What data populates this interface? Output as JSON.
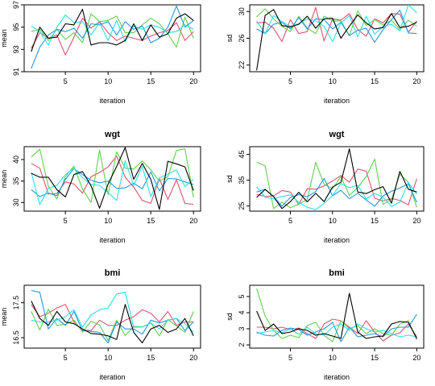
{
  "panels": [
    {
      "title": "",
      "xlabel": "iteration",
      "ylabel": "mean",
      "ylim": [
        91,
        97
      ],
      "yticks": [
        91,
        93,
        95,
        97
      ],
      "series": [
        [
          92.8,
          95.0,
          94.0,
          94.1,
          95.3,
          95.2,
          96.6,
          93.4,
          93.6,
          93.6,
          93.4,
          93.8,
          95.3,
          93.8,
          95.2,
          94.1,
          94.4,
          95.8,
          96.2,
          95.6
        ],
        [
          93.1,
          94.5,
          94.0,
          94.3,
          92.5,
          94.1,
          95.8,
          94.9,
          95.5,
          94.5,
          93.8,
          94.2,
          94.0,
          93.8,
          94.2,
          94.5,
          94.7,
          95.4,
          93.8,
          94.6
        ],
        [
          94.6,
          94.8,
          93.8,
          94.8,
          93.9,
          94.5,
          93.6,
          96.2,
          95.5,
          95.6,
          96.0,
          94.5,
          94.5,
          95.2,
          95.8,
          95.3,
          94.4,
          93.2,
          95.9,
          94.0
        ],
        [
          91.3,
          93.2,
          94.3,
          94.8,
          94.6,
          94.9,
          94.0,
          95.3,
          95.2,
          95.5,
          94.3,
          95.5,
          94.8,
          95.1,
          93.6,
          94.0,
          95.0,
          96.9,
          95.0,
          95.6
        ],
        [
          95.1,
          94.6,
          93.4,
          95.0,
          96.1,
          95.4,
          95.5,
          94.3,
          95.4,
          93.8,
          95.6,
          93.7,
          95.1,
          94.8,
          95.2,
          95.0,
          94.5,
          94.6,
          95.2,
          94.8
        ]
      ]
    },
    {
      "title": "",
      "xlabel": "iteration",
      "ylabel": "sd",
      "ylim": [
        21,
        31
      ],
      "yticks": [
        22,
        26,
        30
      ],
      "series": [
        [
          21.2,
          29.4,
          30.3,
          27.9,
          27.7,
          28.1,
          29.3,
          27.5,
          28.9,
          29.0,
          26.0,
          27.8,
          29.5,
          28.3,
          27.4,
          27.6,
          29.7,
          27.6,
          27.8,
          28.4
        ],
        [
          28.3,
          28.4,
          27.5,
          25.5,
          28.8,
          26.7,
          27.0,
          30.6,
          25.6,
          28.9,
          28.7,
          29.7,
          27.3,
          26.3,
          28.9,
          28.3,
          29.7,
          29.6,
          26.9,
          28.6
        ],
        [
          29.2,
          30.4,
          28.9,
          27.8,
          27.0,
          29.3,
          27.5,
          26.7,
          29.3,
          28.6,
          28.6,
          26.4,
          30.1,
          27.9,
          28.8,
          28.0,
          28.7,
          27.3,
          28.7,
          27.8
        ],
        [
          27.4,
          26.7,
          28.1,
          28.4,
          27.4,
          29.1,
          27.4,
          28.9,
          28.8,
          27.4,
          28.4,
          26.4,
          27.2,
          27.5,
          25.4,
          27.3,
          28.8,
          30.2,
          26.8,
          26.7
        ],
        [
          28.6,
          26.7,
          29.4,
          28.5,
          27.8,
          28.2,
          28.9,
          28.6,
          27.8,
          25.5,
          28.3,
          29.4,
          26.2,
          29.3,
          26.6,
          27.8,
          28.1,
          27.1,
          31.0,
          29.8
        ]
      ]
    },
    {
      "title": "wgt",
      "xlabel": "iteration",
      "ylabel": "mean",
      "ylim": [
        28,
        43
      ],
      "yticks": [
        30,
        35,
        40
      ],
      "series": [
        [
          36.8,
          35.9,
          35.9,
          33.0,
          31.3,
          36.5,
          37.2,
          33.9,
          28.7,
          34.3,
          38.4,
          42.8,
          35.4,
          39.1,
          35.4,
          28.4,
          39.6,
          39.0,
          38.3,
          32.8
        ],
        [
          39.1,
          38.0,
          32.0,
          32.1,
          34.8,
          34.3,
          32.2,
          36.0,
          37.0,
          38.3,
          40.8,
          35.9,
          33.6,
          30.5,
          29.8,
          35.6,
          30.7,
          35.3,
          29.8,
          29.6
        ],
        [
          40.6,
          42.4,
          33.8,
          30.8,
          36.0,
          38.5,
          33.1,
          30.0,
          42.2,
          31.8,
          41.8,
          38.0,
          37.8,
          39.7,
          37.6,
          35.0,
          36.0,
          42.1,
          42.5,
          31.2
        ],
        [
          33.0,
          31.4,
          32.2,
          31.6,
          35.4,
          37.9,
          36.5,
          35.2,
          34.6,
          35.0,
          33.3,
          33.4,
          34.5,
          33.2,
          37.1,
          32.7,
          35.6,
          35.5,
          34.8,
          34.2
        ],
        [
          37.0,
          29.5,
          33.3,
          34.0,
          36.5,
          38.0,
          35.8,
          34.2,
          34.0,
          32.3,
          30.5,
          39.7,
          34.0,
          38.4,
          31.4,
          35.7,
          36.6,
          37.6,
          33.7,
          35.4
        ]
      ]
    },
    {
      "title": "wgt",
      "xlabel": "iteration",
      "ylabel": "sd",
      "ylim": [
        23,
        48
      ],
      "yticks": [
        25,
        35,
        45
      ],
      "series": [
        [
          28.3,
          31.4,
          28.6,
          24.0,
          26.7,
          30.3,
          26.6,
          29.9,
          26.7,
          32.3,
          34.2,
          47.2,
          30.4,
          29.8,
          31.3,
          32.5,
          26.1,
          38.4,
          31.5,
          30.4
        ],
        [
          29.5,
          28.7,
          28.9,
          31.0,
          30.4,
          25.6,
          31.7,
          31.5,
          32.8,
          34.7,
          36.8,
          34.2,
          39.3,
          38.5,
          28.0,
          26.9,
          27.9,
          27.2,
          25.4,
          35.6
        ],
        [
          42.0,
          40.6,
          24.0,
          26.5,
          24.3,
          25.7,
          27.5,
          41.9,
          33.4,
          31.7,
          36.4,
          29.1,
          32.2,
          36.4,
          43.2,
          25.6,
          27.6,
          37.4,
          34.2,
          24.5
        ],
        [
          30.4,
          31.5,
          28.7,
          24.9,
          28.3,
          29.4,
          28.6,
          30.6,
          35.7,
          28.9,
          31.1,
          27.8,
          29.9,
          27.3,
          24.9,
          28.9,
          30.7,
          32.0,
          33.6,
          26.4
        ],
        [
          32.4,
          28.4,
          27.7,
          28.7,
          29.3,
          26.4,
          24.5,
          23.6,
          26.0,
          29.0,
          33.7,
          32.1,
          33.0,
          27.7,
          29.9,
          28.4,
          24.8,
          26.5,
          34.1,
          29.6
        ]
      ]
    },
    {
      "title": "bmi",
      "xlabel": "iteration",
      "ylabel": "mean",
      "ylim": [
        16.2,
        18.0
      ],
      "yticks": [
        16.5,
        17.5
      ],
      "series": [
        [
          17.55,
          17.05,
          16.85,
          17.25,
          16.95,
          16.9,
          16.75,
          16.62,
          16.6,
          16.55,
          16.45,
          17.45,
          16.65,
          16.35,
          16.75,
          16.85,
          16.65,
          16.75,
          17.05,
          16.55
        ],
        [
          17.45,
          17.1,
          17.2,
          17.35,
          17.45,
          16.95,
          16.72,
          16.7,
          17.0,
          16.85,
          16.85,
          17.0,
          17.1,
          17.3,
          17.2,
          16.95,
          17.25,
          16.85,
          16.95,
          16.95
        ],
        [
          17.25,
          16.72,
          17.32,
          16.85,
          16.88,
          17.0,
          16.66,
          16.97,
          16.86,
          16.42,
          17.0,
          16.56,
          16.82,
          16.81,
          16.92,
          16.55,
          17.02,
          16.84,
          16.65,
          17.25
        ],
        [
          17.85,
          17.8,
          16.75,
          17.05,
          16.85,
          17.25,
          16.7,
          16.68,
          16.65,
          16.35,
          16.95,
          16.75,
          16.75,
          16.6,
          17.0,
          16.92,
          17.0,
          17.05,
          16.7,
          16.95
        ],
        [
          17.0,
          16.95,
          16.95,
          17.0,
          17.1,
          17.3,
          16.8,
          17.15,
          17.3,
          17.35,
          17.75,
          17.8,
          16.8,
          16.8,
          16.92,
          16.75,
          17.0,
          17.05,
          16.9,
          16.65
        ]
      ]
    },
    {
      "title": "bmi",
      "xlabel": "iteration",
      "ylabel": "sd",
      "ylim": [
        1.8,
        5.7
      ],
      "yticks": [
        2,
        3,
        4,
        5
      ],
      "series": [
        [
          4.1,
          2.9,
          3.3,
          2.7,
          2.8,
          3.0,
          2.9,
          2.6,
          2.7,
          2.55,
          2.4,
          5.2,
          2.8,
          2.4,
          2.5,
          2.55,
          3.3,
          3.45,
          3.4,
          2.4
        ],
        [
          3.1,
          3.1,
          3.0,
          3.1,
          2.95,
          3.05,
          2.7,
          2.4,
          3.3,
          3.6,
          3.5,
          3.1,
          2.7,
          3.5,
          2.8,
          2.25,
          2.6,
          2.75,
          3.3,
          2.5
        ],
        [
          5.5,
          3.8,
          2.9,
          2.4,
          2.6,
          2.45,
          3.2,
          3.4,
          2.6,
          2.2,
          3.5,
          3.0,
          3.2,
          2.7,
          3.0,
          2.7,
          2.6,
          3.3,
          3.5,
          2.3
        ],
        [
          2.8,
          2.6,
          2.55,
          2.9,
          3.05,
          2.95,
          2.6,
          2.8,
          3.0,
          3.4,
          2.2,
          3.1,
          2.5,
          2.6,
          2.7,
          2.5,
          3.0,
          3.1,
          3.1,
          3.9
        ],
        [
          2.7,
          2.8,
          2.9,
          2.75,
          3.0,
          2.65,
          3.1,
          2.7,
          2.6,
          3.1,
          3.3,
          2.9,
          3.3,
          3.0,
          2.8,
          2.9,
          2.7,
          2.5,
          2.6,
          2.5
        ]
      ]
    }
  ],
  "series_colors": [
    "#000000",
    "#df536b",
    "#61d04f",
    "#2297e6",
    "#28e2e5"
  ],
  "series_order": [
    1,
    2,
    3,
    4,
    0
  ],
  "xticks": [
    5,
    10,
    15,
    20
  ],
  "xlim": [
    1,
    20
  ],
  "chart_data": [
    {
      "type": "line",
      "title": "",
      "xlabel": "iteration",
      "ylabel": "mean",
      "ylim": [
        91,
        97
      ],
      "x": [
        1,
        2,
        3,
        4,
        5,
        6,
        7,
        8,
        9,
        10,
        11,
        12,
        13,
        14,
        15,
        16,
        17,
        18,
        19,
        20
      ]
    },
    {
      "type": "line",
      "title": "",
      "xlabel": "iteration",
      "ylabel": "sd",
      "ylim": [
        21,
        31
      ],
      "x": [
        1,
        2,
        3,
        4,
        5,
        6,
        7,
        8,
        9,
        10,
        11,
        12,
        13,
        14,
        15,
        16,
        17,
        18,
        19,
        20
      ]
    },
    {
      "type": "line",
      "title": "wgt",
      "xlabel": "iteration",
      "ylabel": "mean",
      "ylim": [
        28,
        43
      ],
      "x": [
        1,
        2,
        3,
        4,
        5,
        6,
        7,
        8,
        9,
        10,
        11,
        12,
        13,
        14,
        15,
        16,
        17,
        18,
        19,
        20
      ]
    },
    {
      "type": "line",
      "title": "wgt",
      "xlabel": "iteration",
      "ylabel": "sd",
      "ylim": [
        23,
        48
      ],
      "x": [
        1,
        2,
        3,
        4,
        5,
        6,
        7,
        8,
        9,
        10,
        11,
        12,
        13,
        14,
        15,
        16,
        17,
        18,
        19,
        20
      ]
    },
    {
      "type": "line",
      "title": "bmi",
      "xlabel": "iteration",
      "ylabel": "mean",
      "ylim": [
        16.2,
        18.0
      ],
      "x": [
        1,
        2,
        3,
        4,
        5,
        6,
        7,
        8,
        9,
        10,
        11,
        12,
        13,
        14,
        15,
        16,
        17,
        18,
        19,
        20
      ]
    },
    {
      "type": "line",
      "title": "bmi",
      "xlabel": "iteration",
      "ylabel": "sd",
      "ylim": [
        1.8,
        5.7
      ],
      "x": [
        1,
        2,
        3,
        4,
        5,
        6,
        7,
        8,
        9,
        10,
        11,
        12,
        13,
        14,
        15,
        16,
        17,
        18,
        19,
        20
      ]
    }
  ]
}
